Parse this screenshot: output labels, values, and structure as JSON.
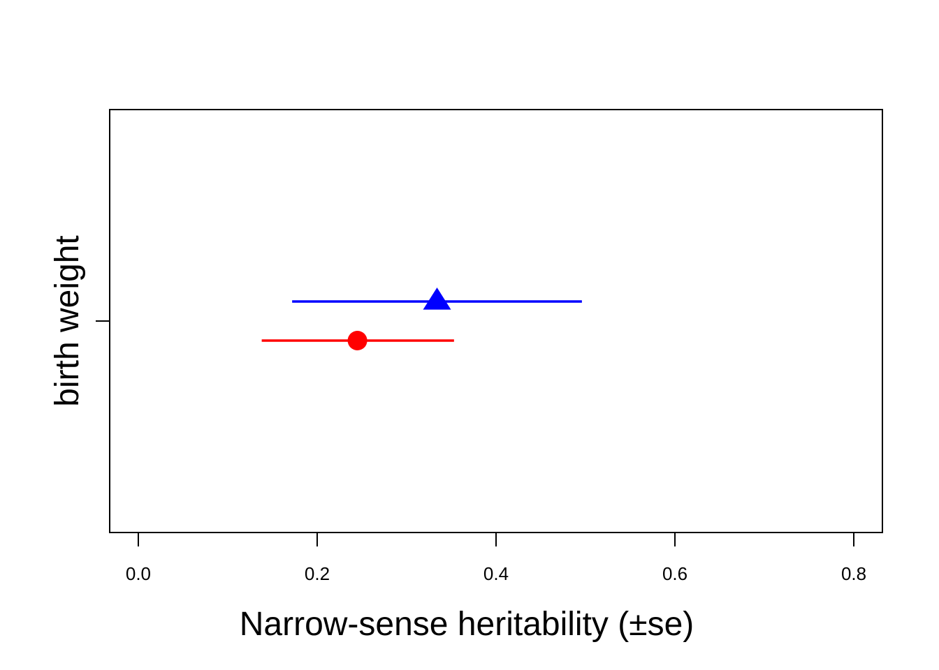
{
  "chart_data": {
    "type": "dot-errorbar",
    "title": "",
    "xlabel": "Narrow-sense heritability (±se)",
    "ylabel": "birth weight",
    "xlim": [
      -0.032,
      0.832
    ],
    "x_ticks": [
      0.0,
      0.2,
      0.4,
      0.6,
      0.8
    ],
    "x_tick_labels": [
      "0.0",
      "0.2",
      "0.4",
      "0.6",
      "0.8"
    ],
    "y_categories": [
      "birth weight"
    ],
    "grid": false,
    "legend": "none",
    "series": [
      {
        "color": "#0000ff",
        "marker": "triangle",
        "category": "birth weight",
        "estimate": 0.334,
        "lower": 0.172,
        "upper": 0.496
      },
      {
        "color": "#ff0000",
        "marker": "circle",
        "category": "birth weight",
        "estimate": 0.245,
        "lower": 0.138,
        "upper": 0.353
      }
    ]
  }
}
